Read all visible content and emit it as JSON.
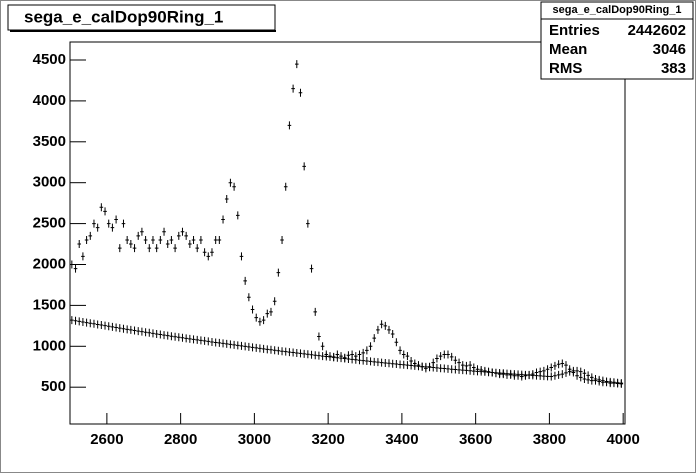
{
  "chart_data": {
    "type": "scatter",
    "title": "sega_e_calDop90Ring_1",
    "stats": {
      "rows": [
        [
          "Entries",
          2442602
        ],
        [
          "Mean",
          3046
        ],
        [
          "RMS",
          383
        ]
      ]
    },
    "xlim": [
      2500,
      4005
    ],
    "ylim": [
      50,
      4720
    ],
    "xticks": [
      2600,
      2800,
      3000,
      3200,
      3400,
      3600,
      3800,
      4000
    ],
    "yticks": [
      500,
      1000,
      1500,
      2000,
      2500,
      3000,
      3500,
      4000,
      4500
    ],
    "x": [
      2505,
      2515,
      2525,
      2535,
      2545,
      2555,
      2565,
      2575,
      2585,
      2595,
      2605,
      2615,
      2625,
      2635,
      2645,
      2655,
      2665,
      2675,
      2685,
      2695,
      2705,
      2715,
      2725,
      2735,
      2745,
      2755,
      2765,
      2775,
      2785,
      2795,
      2805,
      2815,
      2825,
      2835,
      2845,
      2855,
      2865,
      2875,
      2885,
      2895,
      2905,
      2915,
      2925,
      2935,
      2945,
      2955,
      2965,
      2975,
      2985,
      2995,
      3005,
      3015,
      3025,
      3035,
      3045,
      3055,
      3065,
      3075,
      3085,
      3095,
      3105,
      3115,
      3125,
      3135,
      3145,
      3155,
      3165,
      3175,
      3185,
      3195,
      3205,
      3215,
      3225,
      3235,
      3245,
      3255,
      3265,
      3275,
      3285,
      3295,
      3305,
      3315,
      3325,
      3335,
      3345,
      3355,
      3365,
      3375,
      3385,
      3395,
      3405,
      3415,
      3425,
      3435,
      3445,
      3455,
      3465,
      3475,
      3485,
      3495,
      3505,
      3515,
      3525,
      3535,
      3545,
      3555,
      3565,
      3575,
      3585,
      3595,
      3605,
      3615,
      3625,
      3635,
      3645,
      3655,
      3665,
      3675,
      3685,
      3695,
      3705,
      3715,
      3725,
      3735,
      3745,
      3755,
      3765,
      3775,
      3785,
      3795,
      3805,
      3815,
      3825,
      3835,
      3845,
      3855,
      3865,
      3875,
      3885,
      3895,
      3905,
      3915,
      3925,
      3935,
      3945,
      3955,
      3965,
      3975,
      3985,
      3995
    ],
    "series": [
      {
        "color": "#000000",
        "values": [
          2000,
          1950,
          2250,
          2100,
          2300,
          2350,
          2500,
          2450,
          2700,
          2650,
          2500,
          2450,
          2550,
          2200,
          2500,
          2300,
          2250,
          2200,
          2350,
          2400,
          2300,
          2200,
          2300,
          2200,
          2300,
          2400,
          2250,
          2300,
          2200,
          2350,
          2400,
          2350,
          2250,
          2300,
          2200,
          2300,
          2150,
          2100,
          2150,
          2300,
          2300,
          2550,
          2800,
          3000,
          2950,
          2600,
          2100,
          1800,
          1600,
          1450,
          1350,
          1300,
          1320,
          1400,
          1420,
          1550,
          1900,
          2300,
          2950,
          3700,
          4150,
          4450,
          4100,
          3200,
          2500,
          1950,
          1420,
          1120,
          1000,
          900,
          880,
          870,
          900,
          880,
          860,
          890,
          900,
          880,
          900,
          920,
          950,
          1000,
          1100,
          1200,
          1270,
          1250,
          1200,
          1150,
          1050,
          950,
          900,
          880,
          820,
          790,
          770,
          750,
          730,
          750,
          800,
          850,
          880,
          900,
          900,
          870,
          830,
          800,
          770,
          760,
          770,
          740,
          720,
          710,
          700,
          690,
          680,
          670,
          660,
          660,
          650,
          650,
          640,
          640,
          630,
          640,
          650,
          660,
          680,
          690,
          700,
          720,
          740,
          760,
          780,
          790,
          770,
          720,
          680,
          640,
          620,
          600,
          590,
          580,
          580,
          570,
          560,
          560,
          550,
          550,
          545,
          540
        ]
      },
      {
        "color": "#000000",
        "values": [
          1320,
          1312,
          1305,
          1297,
          1290,
          1282,
          1275,
          1267,
          1260,
          1252,
          1245,
          1237,
          1230,
          1222,
          1215,
          1207,
          1200,
          1193,
          1186,
          1179,
          1172,
          1165,
          1158,
          1151,
          1144,
          1137,
          1130,
          1123,
          1116,
          1110,
          1104,
          1097,
          1091,
          1085,
          1078,
          1072,
          1066,
          1060,
          1053,
          1047,
          1041,
          1035,
          1029,
          1023,
          1017,
          1011,
          1005,
          999,
          993,
          987,
          981,
          975,
          969,
          963,
          958,
          952,
          946,
          940,
          935,
          929,
          924,
          918,
          913,
          907,
          902,
          896,
          891,
          886,
          880,
          875,
          870,
          865,
          860,
          855,
          850,
          845,
          840,
          835,
          830,
          825,
          820,
          815,
          810,
          806,
          801,
          796,
          792,
          787,
          783,
          778,
          774,
          769,
          765,
          761,
          756,
          752,
          748,
          744,
          740,
          736,
          732,
          728,
          724,
          720,
          716,
          712,
          708,
          705,
          701,
          697,
          694,
          690,
          687,
          683,
          680,
          676,
          673,
          670,
          666,
          663,
          660,
          657,
          653,
          650,
          647,
          644,
          641,
          638,
          635,
          632,
          630,
          640,
          650,
          660,
          675,
          690,
          700,
          700,
          690,
          670,
          645,
          620,
          600,
          590,
          580,
          570,
          565,
          560,
          555,
          550
        ]
      }
    ]
  }
}
